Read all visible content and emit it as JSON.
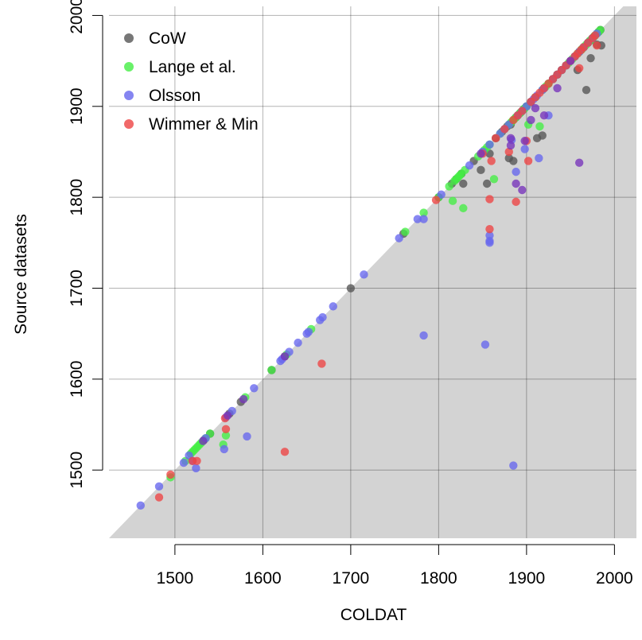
{
  "chart_data": {
    "type": "scatter",
    "xlabel": "COLDAT",
    "ylabel": "Source datasets",
    "xlim": [
      1425,
      2025
    ],
    "ylim": [
      1425,
      2010
    ],
    "xticks": [
      1500,
      1600,
      1700,
      1800,
      1900,
      2000
    ],
    "yticks": [
      1500,
      1600,
      1700,
      1800,
      1900,
      2000
    ],
    "grid": true,
    "shaded_region": "below the y = x diagonal (light gray)",
    "legend_position": "top-left",
    "series": [
      {
        "name": "CoW",
        "color": "#555555",
        "points": [
          [
            1533,
            1533
          ],
          [
            1540,
            1540
          ],
          [
            1562,
            1562
          ],
          [
            1575,
            1575
          ],
          [
            1610,
            1610
          ],
          [
            1625,
            1625
          ],
          [
            1700,
            1700
          ],
          [
            1760,
            1760
          ],
          [
            1800,
            1800
          ],
          [
            1815,
            1815
          ],
          [
            1820,
            1820
          ],
          [
            1826,
            1826
          ],
          [
            1828,
            1815
          ],
          [
            1840,
            1840
          ],
          [
            1848,
            1830
          ],
          [
            1855,
            1815
          ],
          [
            1858,
            1848
          ],
          [
            1865,
            1865
          ],
          [
            1872,
            1872
          ],
          [
            1878,
            1878
          ],
          [
            1880,
            1843
          ],
          [
            1882,
            1880
          ],
          [
            1885,
            1840
          ],
          [
            1888,
            1888
          ],
          [
            1893,
            1893
          ],
          [
            1897,
            1897
          ],
          [
            1900,
            1900
          ],
          [
            1905,
            1905
          ],
          [
            1910,
            1910
          ],
          [
            1912,
            1865
          ],
          [
            1918,
            1868
          ],
          [
            1920,
            1920
          ],
          [
            1925,
            1925
          ],
          [
            1930,
            1930
          ],
          [
            1935,
            1935
          ],
          [
            1940,
            1940
          ],
          [
            1945,
            1945
          ],
          [
            1950,
            1950
          ],
          [
            1955,
            1955
          ],
          [
            1958,
            1940
          ],
          [
            1960,
            1960
          ],
          [
            1963,
            1963
          ],
          [
            1965,
            1965
          ],
          [
            1968,
            1918
          ],
          [
            1970,
            1970
          ],
          [
            1972,
            1972
          ],
          [
            1973,
            1953
          ],
          [
            1975,
            1975
          ],
          [
            1977,
            1977
          ],
          [
            1980,
            1968
          ],
          [
            1982,
            1982
          ],
          [
            1984,
            1984
          ],
          [
            1985,
            1967
          ]
        ]
      },
      {
        "name": "Lange et al.",
        "color": "#44ee44",
        "points": [
          [
            1495,
            1492
          ],
          [
            1512,
            1510
          ],
          [
            1518,
            1518
          ],
          [
            1520,
            1520
          ],
          [
            1522,
            1522
          ],
          [
            1524,
            1524
          ],
          [
            1526,
            1526
          ],
          [
            1528,
            1528
          ],
          [
            1530,
            1530
          ],
          [
            1535,
            1535
          ],
          [
            1540,
            1540
          ],
          [
            1555,
            1528
          ],
          [
            1558,
            1538
          ],
          [
            1580,
            1580
          ],
          [
            1610,
            1610
          ],
          [
            1627,
            1627
          ],
          [
            1655,
            1655
          ],
          [
            1762,
            1762
          ],
          [
            1783,
            1783
          ],
          [
            1800,
            1800
          ],
          [
            1812,
            1812
          ],
          [
            1816,
            1796
          ],
          [
            1818,
            1818
          ],
          [
            1820,
            1820
          ],
          [
            1822,
            1822
          ],
          [
            1824,
            1824
          ],
          [
            1826,
            1826
          ],
          [
            1828,
            1788
          ],
          [
            1830,
            1830
          ],
          [
            1845,
            1845
          ],
          [
            1852,
            1852
          ],
          [
            1855,
            1855
          ],
          [
            1858,
            1858
          ],
          [
            1863,
            1820
          ],
          [
            1870,
            1870
          ],
          [
            1875,
            1875
          ],
          [
            1880,
            1880
          ],
          [
            1882,
            1882
          ],
          [
            1884,
            1884
          ],
          [
            1886,
            1886
          ],
          [
            1888,
            1888
          ],
          [
            1890,
            1890
          ],
          [
            1892,
            1892
          ],
          [
            1894,
            1894
          ],
          [
            1896,
            1896
          ],
          [
            1898,
            1898
          ],
          [
            1900,
            1900
          ],
          [
            1902,
            1880
          ],
          [
            1905,
            1905
          ],
          [
            1910,
            1910
          ],
          [
            1915,
            1878
          ],
          [
            1918,
            1918
          ],
          [
            1920,
            1920
          ],
          [
            1922,
            1922
          ],
          [
            1925,
            1925
          ],
          [
            1930,
            1930
          ],
          [
            1935,
            1935
          ],
          [
            1940,
            1940
          ],
          [
            1945,
            1945
          ],
          [
            1948,
            1948
          ],
          [
            1950,
            1950
          ],
          [
            1952,
            1952
          ],
          [
            1955,
            1955
          ],
          [
            1958,
            1958
          ],
          [
            1960,
            1960
          ],
          [
            1962,
            1962
          ],
          [
            1964,
            1964
          ],
          [
            1966,
            1966
          ],
          [
            1968,
            1968
          ],
          [
            1970,
            1970
          ],
          [
            1972,
            1972
          ],
          [
            1974,
            1974
          ],
          [
            1976,
            1976
          ],
          [
            1978,
            1978
          ],
          [
            1980,
            1980
          ],
          [
            1982,
            1982
          ],
          [
            1984,
            1984
          ]
        ]
      },
      {
        "name": "Olsson",
        "color": "#6666ee",
        "points": [
          [
            1461,
            1461
          ],
          [
            1482,
            1482
          ],
          [
            1510,
            1508
          ],
          [
            1516,
            1516
          ],
          [
            1520,
            1510
          ],
          [
            1524,
            1502
          ],
          [
            1535,
            1535
          ],
          [
            1556,
            1523
          ],
          [
            1558,
            1558
          ],
          [
            1565,
            1565
          ],
          [
            1582,
            1537
          ],
          [
            1590,
            1590
          ],
          [
            1620,
            1620
          ],
          [
            1622,
            1622
          ],
          [
            1630,
            1630
          ],
          [
            1640,
            1640
          ],
          [
            1650,
            1650
          ],
          [
            1652,
            1652
          ],
          [
            1665,
            1665
          ],
          [
            1668,
            1668
          ],
          [
            1680,
            1680
          ],
          [
            1715,
            1715
          ],
          [
            1755,
            1755
          ],
          [
            1776,
            1776
          ],
          [
            1783,
            1776
          ],
          [
            1783,
            1648
          ],
          [
            1803,
            1803
          ],
          [
            1835,
            1835
          ],
          [
            1850,
            1850
          ],
          [
            1853,
            1638
          ],
          [
            1858,
            1758
          ],
          [
            1858,
            1752
          ],
          [
            1858,
            1750
          ],
          [
            1858,
            1858
          ],
          [
            1870,
            1870
          ],
          [
            1875,
            1875
          ],
          [
            1880,
            1880
          ],
          [
            1883,
            1863
          ],
          [
            1885,
            1505
          ],
          [
            1888,
            1828
          ],
          [
            1890,
            1890
          ],
          [
            1895,
            1895
          ],
          [
            1898,
            1853
          ],
          [
            1900,
            1900
          ],
          [
            1905,
            1905
          ],
          [
            1908,
            1908
          ],
          [
            1912,
            1912
          ],
          [
            1914,
            1843
          ],
          [
            1918,
            1918
          ],
          [
            1920,
            1920
          ],
          [
            1925,
            1890
          ],
          [
            1930,
            1930
          ],
          [
            1935,
            1935
          ],
          [
            1940,
            1940
          ],
          [
            1945,
            1945
          ],
          [
            1950,
            1950
          ],
          [
            1955,
            1955
          ],
          [
            1960,
            1960
          ],
          [
            1965,
            1965
          ],
          [
            1970,
            1970
          ],
          [
            1975,
            1975
          ],
          [
            1980,
            1980
          ]
        ]
      },
      {
        "name": "Wimmer & Min",
        "color": "#ee4444",
        "points": [
          [
            1482,
            1470
          ],
          [
            1495,
            1495
          ],
          [
            1520,
            1510
          ],
          [
            1525,
            1510
          ],
          [
            1557,
            1557
          ],
          [
            1558,
            1545
          ],
          [
            1625,
            1520
          ],
          [
            1667,
            1617
          ],
          [
            1797,
            1797
          ],
          [
            1850,
            1848
          ],
          [
            1858,
            1798
          ],
          [
            1858,
            1765
          ],
          [
            1860,
            1840
          ],
          [
            1865,
            1865
          ],
          [
            1875,
            1875
          ],
          [
            1880,
            1850
          ],
          [
            1885,
            1885
          ],
          [
            1888,
            1795
          ],
          [
            1890,
            1890
          ],
          [
            1895,
            1895
          ],
          [
            1900,
            1862
          ],
          [
            1902,
            1840
          ],
          [
            1905,
            1905
          ],
          [
            1910,
            1910
          ],
          [
            1915,
            1915
          ],
          [
            1920,
            1920
          ],
          [
            1925,
            1925
          ],
          [
            1930,
            1930
          ],
          [
            1935,
            1935
          ],
          [
            1940,
            1940
          ],
          [
            1945,
            1945
          ],
          [
            1950,
            1950
          ],
          [
            1955,
            1955
          ],
          [
            1958,
            1958
          ],
          [
            1960,
            1942
          ],
          [
            1962,
            1962
          ],
          [
            1965,
            1965
          ],
          [
            1970,
            1970
          ],
          [
            1975,
            1975
          ],
          [
            1978,
            1978
          ],
          [
            1980,
            1967
          ]
        ]
      },
      {
        "name": "",
        "color": "#7733bb",
        "points": [
          [
            1532,
            1532
          ],
          [
            1560,
            1560
          ],
          [
            1578,
            1578
          ],
          [
            1625,
            1625
          ],
          [
            1848,
            1848
          ],
          [
            1882,
            1857
          ],
          [
            1882,
            1865
          ],
          [
            1888,
            1815
          ],
          [
            1895,
            1808
          ],
          [
            1898,
            1862
          ],
          [
            1905,
            1885
          ],
          [
            1910,
            1898
          ],
          [
            1920,
            1890
          ],
          [
            1935,
            1920
          ],
          [
            1950,
            1950
          ],
          [
            1960,
            1838
          ]
        ]
      }
    ]
  }
}
